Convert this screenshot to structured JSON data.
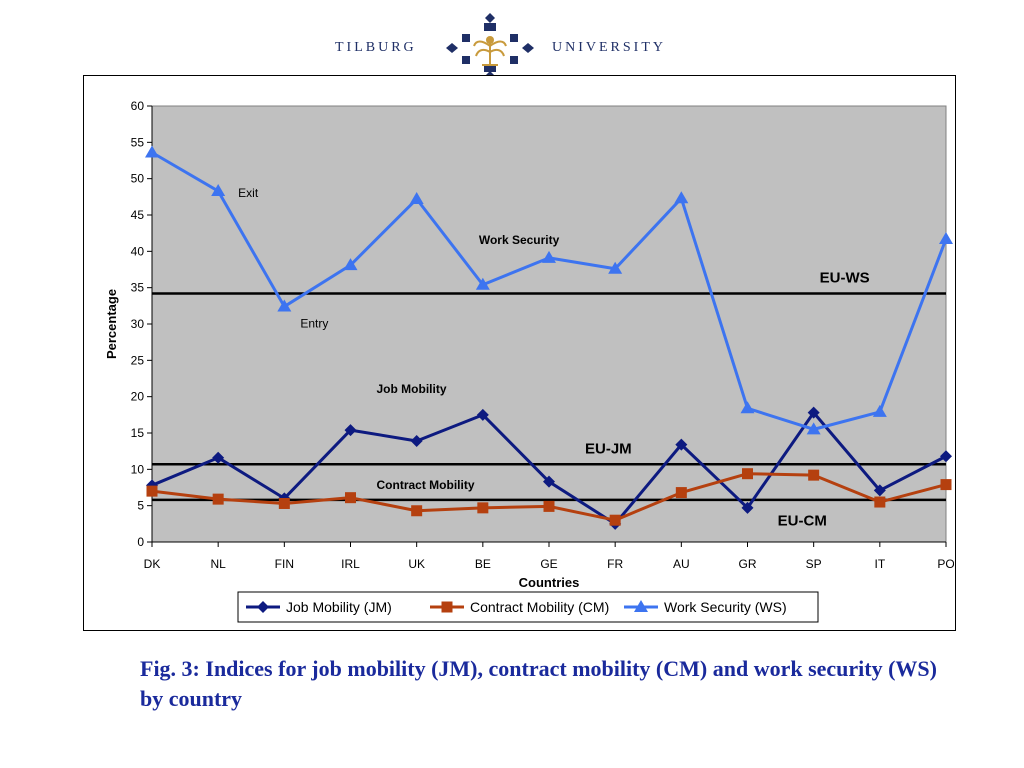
{
  "header": {
    "logo_left": "Tilburg",
    "logo_right": "University"
  },
  "caption": "Fig. 3: Indices for job mobility (JM), contract mobility (CM) and work security (WS) by country",
  "chart_data": {
    "type": "line",
    "title": "",
    "xlabel": "Countries",
    "ylabel": "Percentage",
    "ylim": [
      0,
      60
    ],
    "yticks": [
      0,
      5,
      10,
      15,
      20,
      25,
      30,
      35,
      40,
      45,
      50,
      55,
      60
    ],
    "grid": false,
    "legend_position": "bottom",
    "categories": [
      "DK",
      "NL",
      "FIN",
      "IRL",
      "UK",
      "BE",
      "GE",
      "FR",
      "AU",
      "GR",
      "SP",
      "IT",
      "PO"
    ],
    "series": [
      {
        "name": "Job Mobility (JM)",
        "color": "#0d1a80",
        "marker": "diamond",
        "values": [
          7.8,
          11.6,
          6.0,
          15.4,
          13.9,
          17.5,
          8.3,
          2.5,
          13.4,
          4.7,
          17.8,
          7.1,
          11.8
        ]
      },
      {
        "name": "Contract Mobility (CM)",
        "color": "#b5400f",
        "marker": "square",
        "values": [
          7.0,
          5.9,
          5.3,
          6.1,
          4.3,
          4.7,
          4.9,
          3.0,
          6.8,
          9.4,
          9.2,
          5.5,
          7.9
        ]
      },
      {
        "name": "Work Security (WS)",
        "color": "#3d74f0",
        "marker": "triangle",
        "values": [
          53.6,
          48.3,
          32.4,
          38.1,
          47.2,
          35.4,
          39.1,
          37.6,
          47.3,
          18.4,
          15.5,
          17.9,
          41.7
        ]
      }
    ],
    "reference_lines": [
      {
        "label": "EU-WS",
        "value": 34.2
      },
      {
        "label": "EU-JM",
        "value": 10.7
      },
      {
        "label": "EU-CM",
        "value": 5.8
      }
    ],
    "annotations": [
      {
        "text": "Exit",
        "x": "NL",
        "y": 47.5,
        "style": "plain"
      },
      {
        "text": "Entry",
        "x": "FIN",
        "y": 29.5,
        "style": "plain"
      },
      {
        "text": "Work Security",
        "x": "BE",
        "y": 41.0,
        "style": "bold"
      },
      {
        "text": "Job Mobility",
        "x": "IRL",
        "y": 20.5,
        "style": "bold"
      },
      {
        "text": "Contract  Mobility",
        "x": "IRL",
        "y": 7.3,
        "style": "bold"
      },
      {
        "text": "EU-WS",
        "x": "SP",
        "y": 35.7,
        "style": "big"
      },
      {
        "text": "EU-JM",
        "x": "GE",
        "y": 12.2,
        "style": "big"
      },
      {
        "text": "EU-CM",
        "x": "SP",
        "y": 2.3,
        "style": "big"
      }
    ]
  }
}
